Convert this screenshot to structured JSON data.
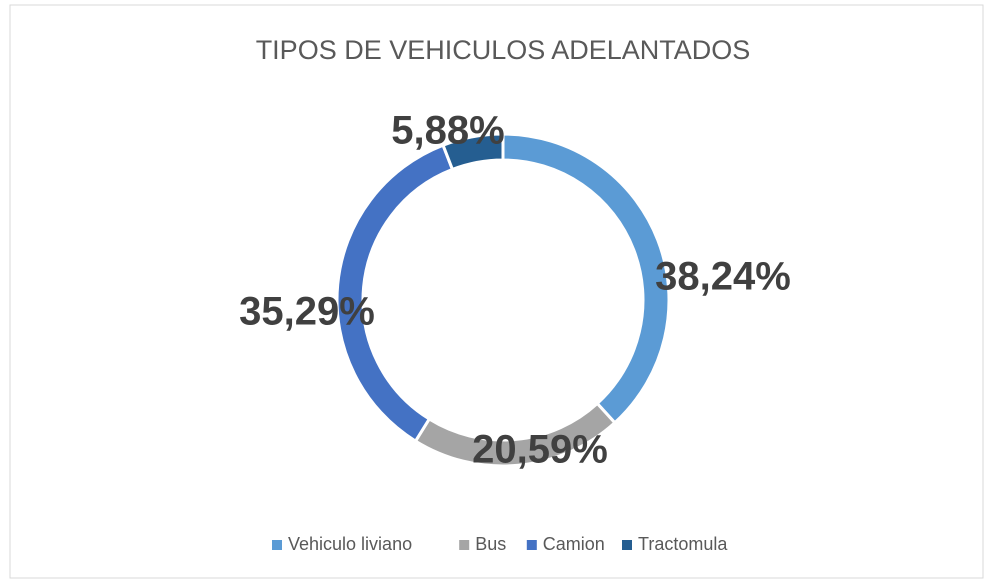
{
  "chart_data": {
    "type": "pie",
    "title": "TIPOS DE VEHICULOS ADELANTADOS",
    "categories": [
      "Vehiculo liviano",
      "Bus",
      "Camion",
      "Tractomula"
    ],
    "values": [
      38.24,
      20.59,
      35.29,
      5.88
    ],
    "value_labels": [
      "38,24%",
      "20,59%",
      "35,29%",
      "5,88%"
    ],
    "colors": [
      "#5b9bd5",
      "#a5a5a5",
      "#4472c4",
      "#255e91"
    ],
    "donut": true,
    "legend": "bottom"
  }
}
